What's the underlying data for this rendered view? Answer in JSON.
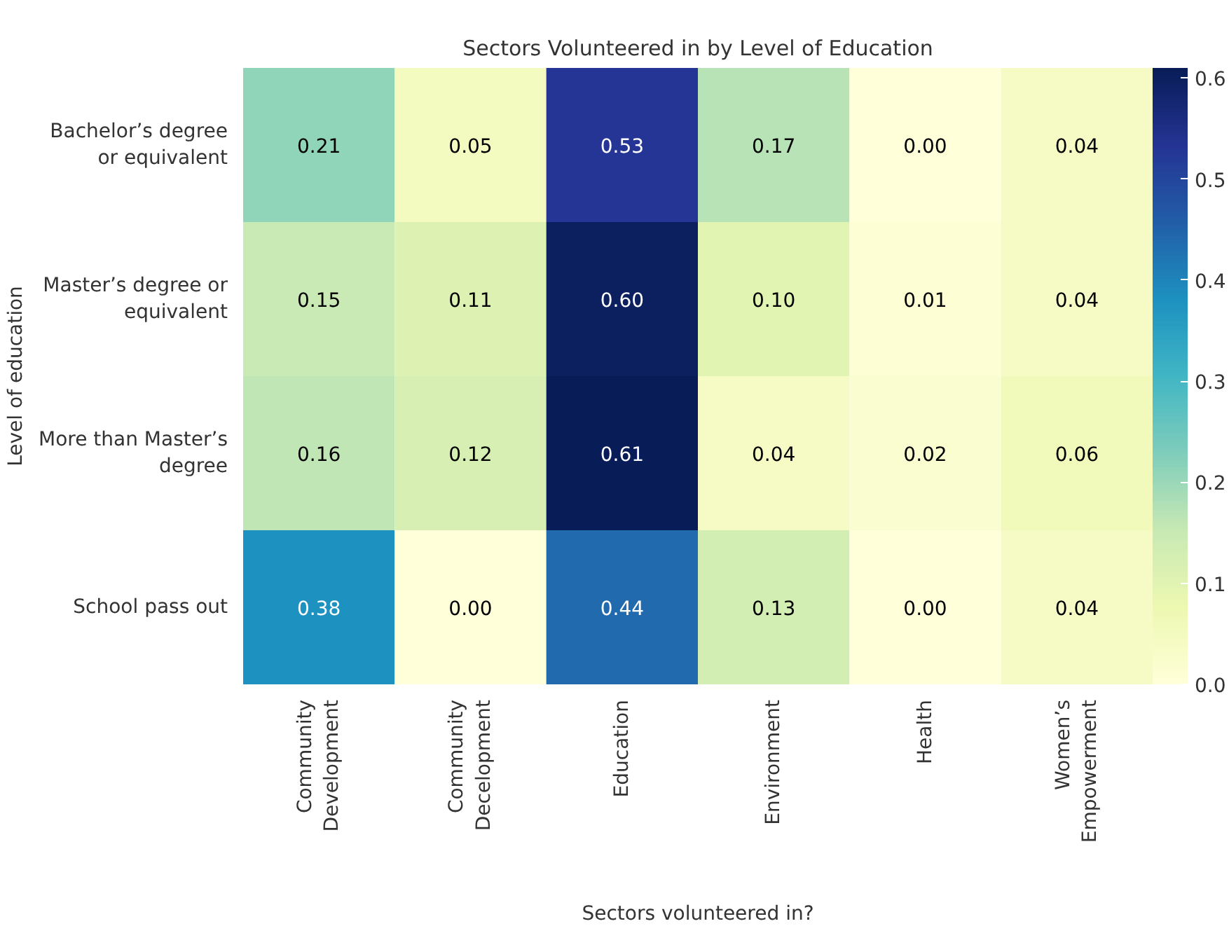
{
  "chart_data": {
    "type": "heatmap",
    "title": "Sectors Volunteered in by Level of Education",
    "xlabel": "Sectors volunteered in?",
    "ylabel": "Level of education",
    "categories": [
      "Community Development",
      "Community Decelopment",
      "Education",
      "Environment",
      "Health",
      "Women’s Empowerment"
    ],
    "y_categories": [
      "Bachelor’s degree or equivalent",
      "Master’s degree or equivalent",
      "More than Master’s degree",
      "School pass out"
    ],
    "cells": [
      [
        0.21,
        0.05,
        0.53,
        0.17,
        0.0,
        0.04
      ],
      [
        0.15,
        0.11,
        0.6,
        0.1,
        0.01,
        0.04
      ],
      [
        0.16,
        0.12,
        0.61,
        0.04,
        0.02,
        0.06
      ],
      [
        0.38,
        0.0,
        0.44,
        0.13,
        0.0,
        0.04
      ]
    ],
    "cell_labels": [
      [
        "0.21",
        "0.05",
        "0.53",
        "0.17",
        "0.00",
        "0.04"
      ],
      [
        "0.15",
        "0.11",
        "0.60",
        "0.10",
        "0.01",
        "0.04"
      ],
      [
        "0.16",
        "0.12",
        "0.61",
        "0.04",
        "0.02",
        "0.06"
      ],
      [
        "0.38",
        "0.00",
        "0.44",
        "0.13",
        "0.00",
        "0.04"
      ]
    ],
    "cticks": [
      {
        "value": 0,
        "label": "0.0"
      },
      {
        "value": 0.1,
        "label": "0.1"
      },
      {
        "value": 0.2,
        "label": "0.2"
      },
      {
        "value": 0.3,
        "label": "0.3"
      },
      {
        "value": 0.4,
        "label": "0.4"
      },
      {
        "value": 0.5,
        "label": "0.5"
      },
      {
        "value": 0.6,
        "label": "0.6"
      }
    ]
  }
}
